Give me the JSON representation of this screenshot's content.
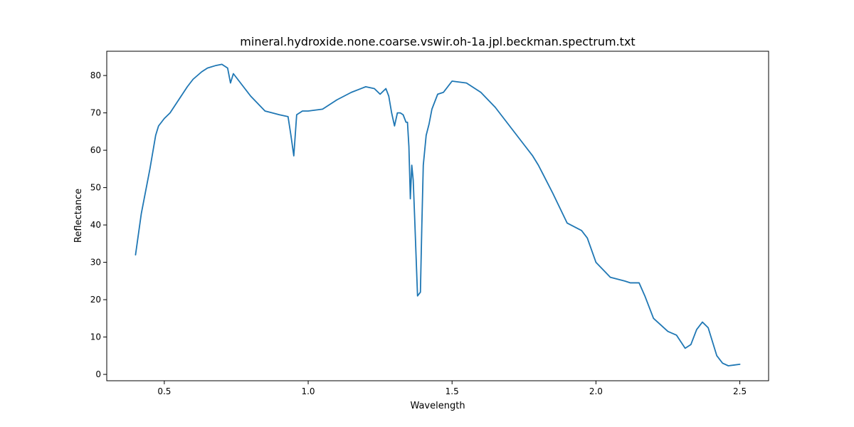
{
  "chart_data": {
    "type": "line",
    "title": "mineral.hydroxide.none.coarse.vswir.oh-1a.jpl.beckman.spectrum.txt",
    "xlabel": "Wavelength",
    "ylabel": "Reflectance",
    "xlim": [
      0.3,
      2.6
    ],
    "ylim": [
      -1.7,
      86.5
    ],
    "xticks": [
      0.5,
      1.0,
      1.5,
      2.0,
      2.5
    ],
    "xtick_labels": [
      "0.5",
      "1.0",
      "1.5",
      "2.0",
      "2.5"
    ],
    "yticks": [
      0,
      10,
      20,
      30,
      40,
      50,
      60,
      70,
      80
    ],
    "ytick_labels": [
      "0",
      "10",
      "20",
      "30",
      "40",
      "50",
      "60",
      "70",
      "80"
    ],
    "grid": false,
    "series": [
      {
        "color": "#1f77b4",
        "x": [
          0.4,
          0.42,
          0.45,
          0.47,
          0.48,
          0.5,
          0.52,
          0.55,
          0.58,
          0.6,
          0.63,
          0.65,
          0.68,
          0.7,
          0.72,
          0.73,
          0.74,
          0.75,
          0.78,
          0.8,
          0.85,
          0.9,
          0.93,
          0.94,
          0.95,
          0.96,
          0.98,
          1.0,
          1.05,
          1.1,
          1.15,
          1.2,
          1.23,
          1.25,
          1.27,
          1.28,
          1.29,
          1.3,
          1.31,
          1.32,
          1.33,
          1.34,
          1.345,
          1.35,
          1.355,
          1.36,
          1.365,
          1.37,
          1.38,
          1.39,
          1.395,
          1.4,
          1.41,
          1.42,
          1.43,
          1.45,
          1.47,
          1.5,
          1.55,
          1.6,
          1.65,
          1.7,
          1.75,
          1.78,
          1.8,
          1.85,
          1.9,
          1.95,
          1.97,
          2.0,
          2.05,
          2.1,
          2.12,
          2.15,
          2.17,
          2.2,
          2.25,
          2.28,
          2.31,
          2.33,
          2.35,
          2.37,
          2.39,
          2.42,
          2.44,
          2.46,
          2.48,
          2.5
        ],
        "y": [
          32.0,
          43.0,
          55.0,
          64.0,
          66.5,
          68.5,
          70.0,
          73.5,
          77.0,
          79.0,
          81.0,
          82.0,
          82.7,
          83.0,
          82.0,
          78.0,
          80.5,
          79.5,
          76.5,
          74.5,
          70.5,
          69.5,
          69.0,
          64.0,
          58.5,
          69.5,
          70.5,
          70.5,
          71.0,
          73.5,
          75.5,
          77.0,
          76.5,
          75.0,
          76.5,
          74.5,
          70.0,
          66.5,
          70.0,
          70.0,
          69.5,
          67.5,
          67.5,
          61.0,
          47.0,
          56.0,
          52.0,
          42.0,
          21.0,
          22.0,
          40.0,
          56.0,
          64.0,
          67.0,
          71.0,
          75.0,
          75.5,
          78.5,
          78.0,
          75.5,
          71.5,
          66.5,
          61.5,
          58.5,
          56.0,
          48.5,
          40.5,
          38.5,
          36.5,
          30.0,
          26.0,
          25.0,
          24.5,
          24.5,
          21.0,
          15.0,
          11.5,
          10.5,
          7.0,
          8.0,
          12.0,
          14.0,
          12.5,
          5.0,
          3.0,
          2.3,
          2.5,
          2.7
        ]
      }
    ]
  }
}
